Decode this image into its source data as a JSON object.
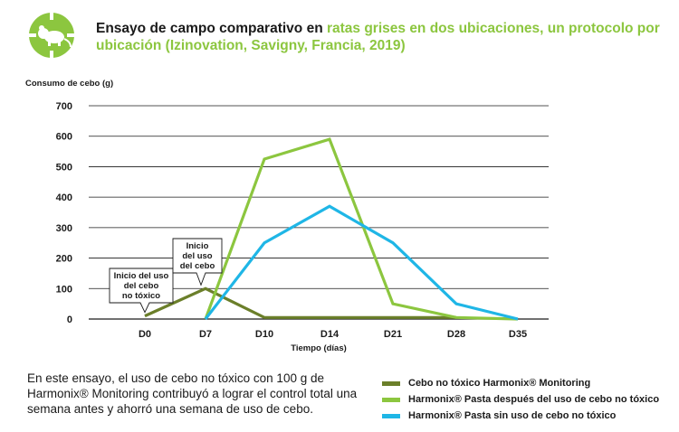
{
  "header": {
    "title_part1": "Ensayo de campo comparativo en",
    "title_part2": " ratas grises en dos ubicaciones, un protocolo por ubicación (Izinovation, Savigny, Francia, 2019)",
    "logo_icon": "rat-target-icon",
    "accent_color": "#8cc63f"
  },
  "chart_data": {
    "type": "line",
    "title": "",
    "ylabel": "Consumo de cebo (g)",
    "xlabel": "Tiempo (días)",
    "categories": [
      "D0",
      "D7",
      "D10",
      "D14",
      "D21",
      "D28",
      "D35"
    ],
    "ylim": [
      0,
      700
    ],
    "yticks": [
      0,
      100,
      200,
      300,
      400,
      500,
      600,
      700
    ],
    "grid": true,
    "series": [
      {
        "name": "Cebo no tóxico Harmonix® Monitoring",
        "color": "#6b7f2a",
        "values": [
          10,
          100,
          5,
          5,
          5,
          5,
          null
        ]
      },
      {
        "name": "Harmonix® Pasta después del uso de cebo no tóxico",
        "color": "#8cc63f",
        "values": [
          null,
          0,
          525,
          590,
          50,
          5,
          0
        ]
      },
      {
        "name": "Harmonix® Pasta sin uso de cebo no tóxico",
        "color": "#1fb6e6",
        "values": [
          null,
          0,
          250,
          370,
          250,
          50,
          0
        ]
      }
    ],
    "annotations": [
      {
        "lines": [
          "Inicio del uso",
          "del cebo",
          "no tóxico"
        ],
        "category": "D0"
      },
      {
        "lines": [
          "Inicio",
          "del uso",
          "del cebo"
        ],
        "category": "D7"
      }
    ]
  },
  "note": {
    "text": "En este ensayo, el uso de cebo no tóxico con 100 g de Harmonix® Monitoring contribuyó a lograr el control total una semana antes y ahorró una semana de uso de cebo."
  }
}
